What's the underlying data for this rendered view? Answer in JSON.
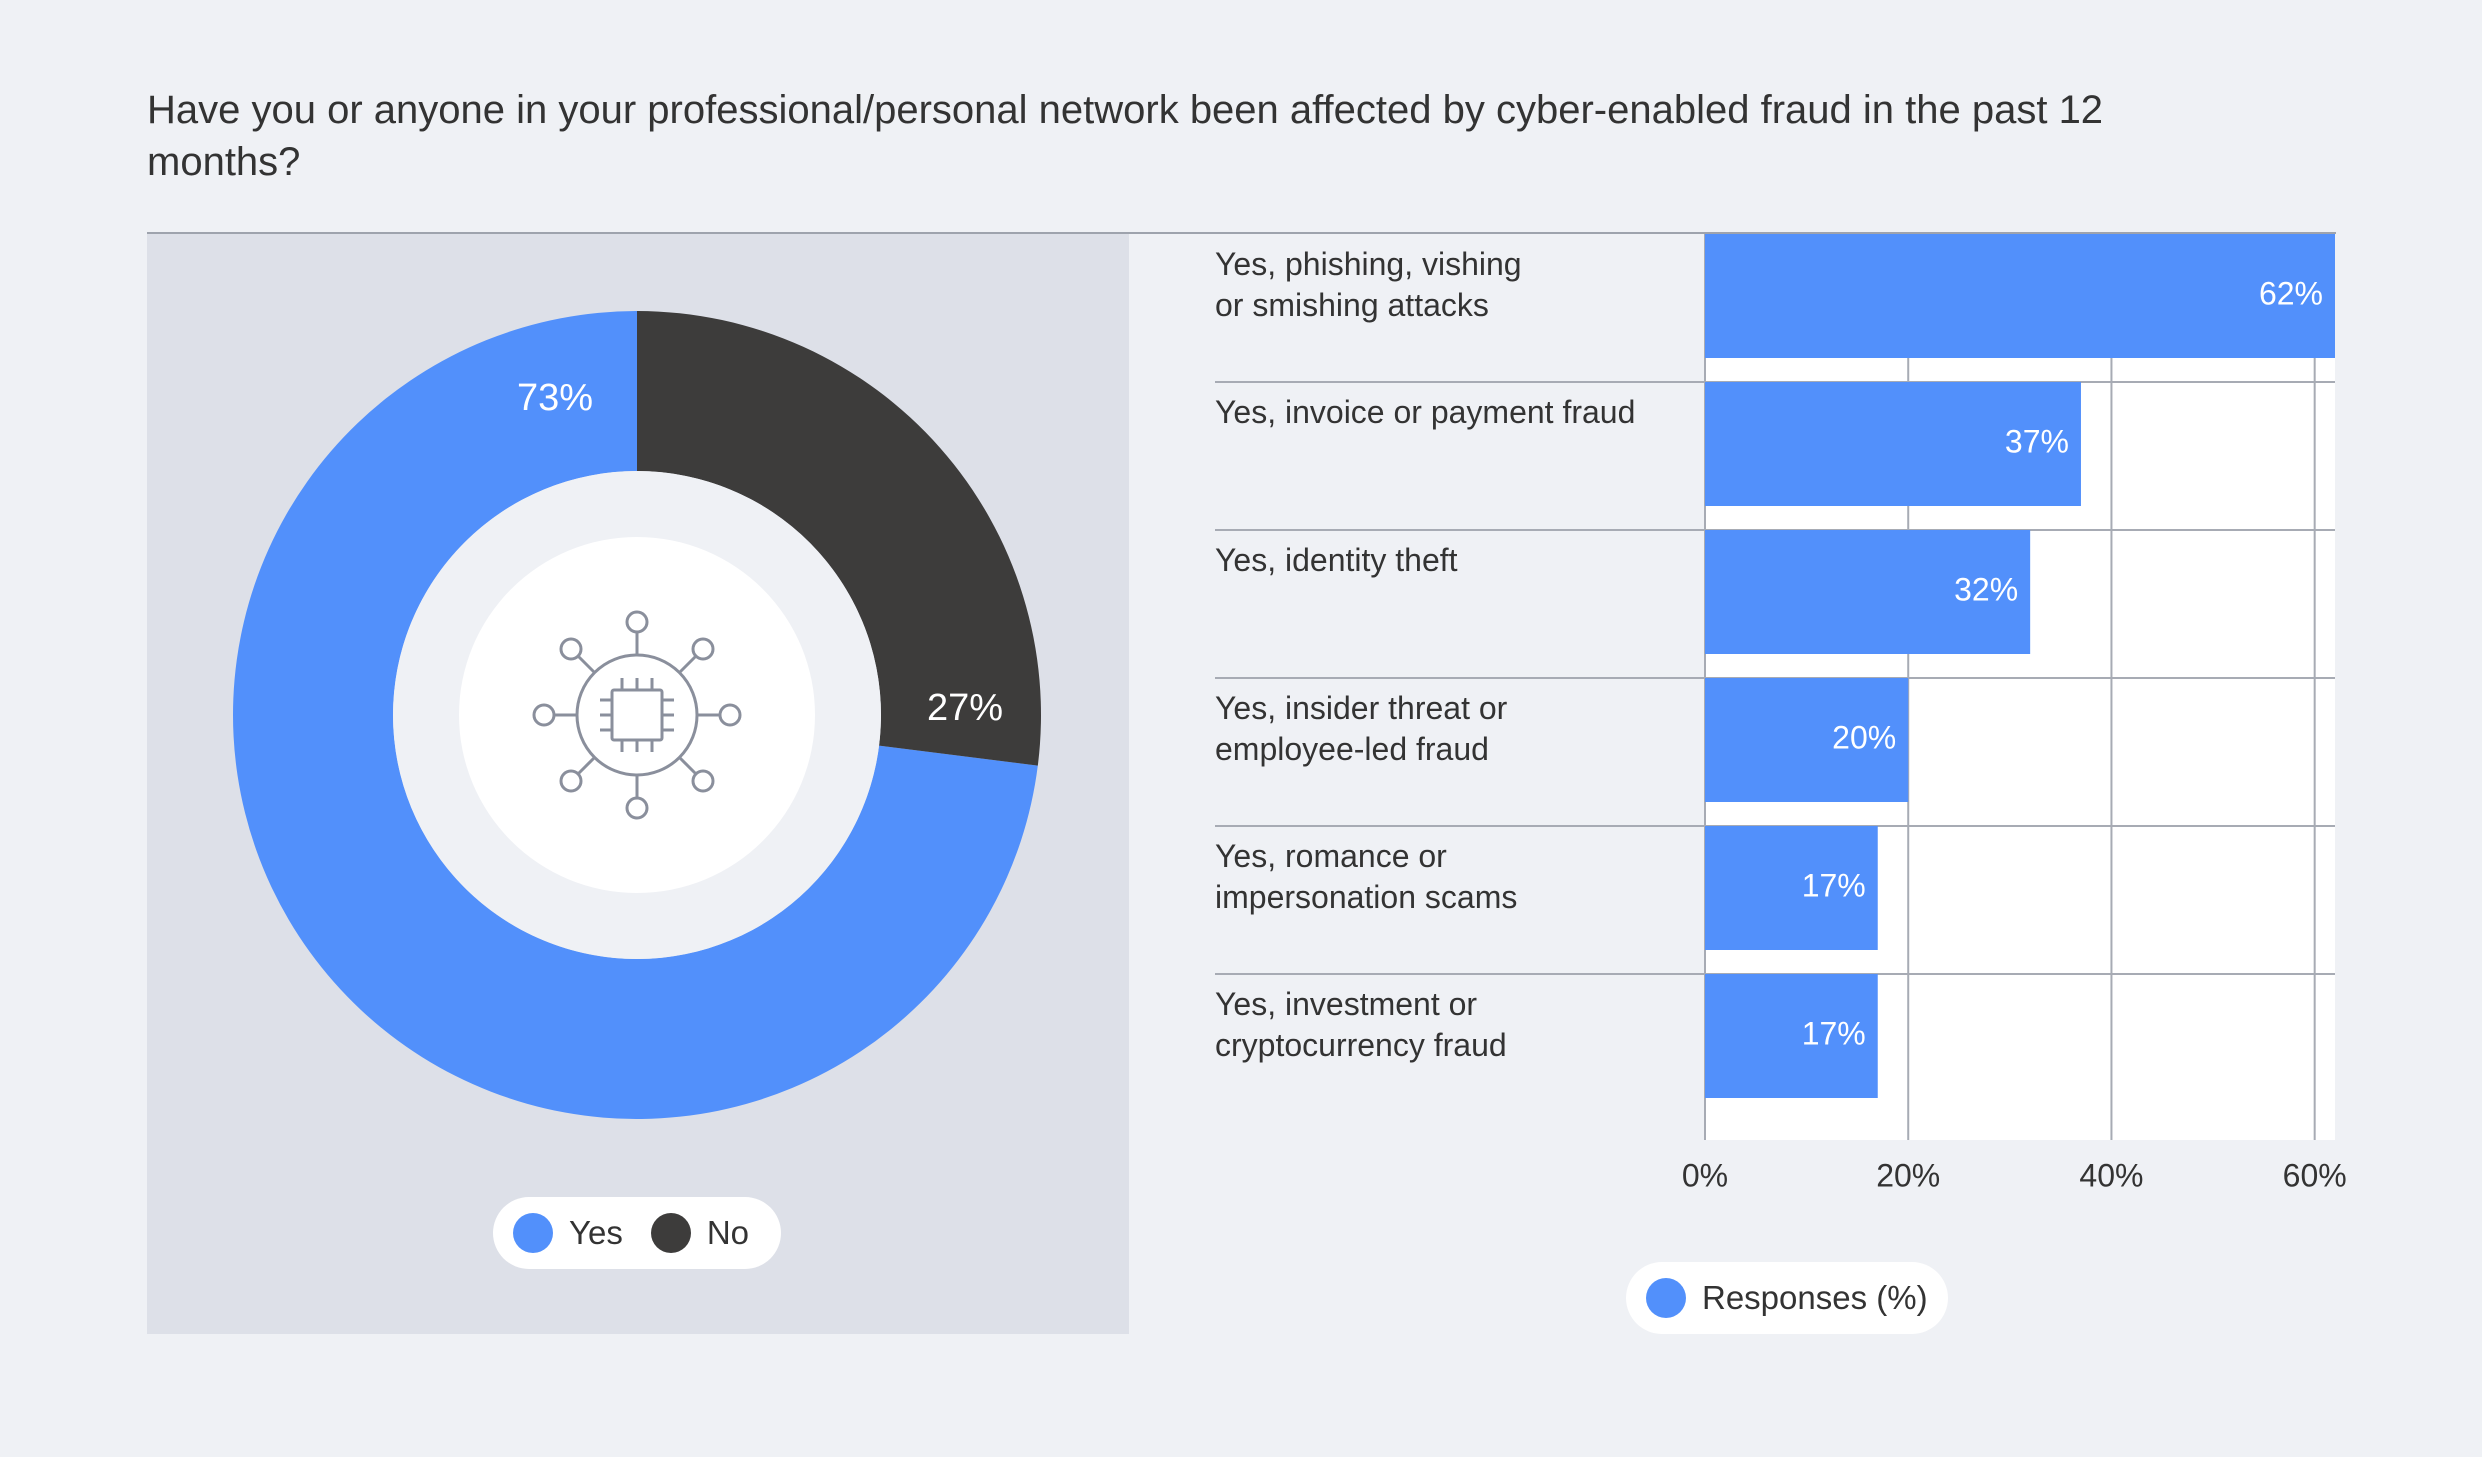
{
  "title": "Have you or anyone in your professional/personal network been affected by cyber-enabled fraud in the past 12 months?",
  "colors": {
    "yes": "#5290fb",
    "no": "#3d3c3b",
    "bar": "#5290fb",
    "panel": "#dde0e8",
    "background": "#eff1f5"
  },
  "icon": "circuit-chip-icon",
  "chart_data": [
    {
      "type": "pie",
      "variant": "donut",
      "slices": [
        {
          "label": "Yes",
          "value": 73,
          "display": "73%"
        },
        {
          "label": "No",
          "value": 27,
          "display": "27%"
        }
      ],
      "legend": [
        "Yes",
        "No"
      ],
      "legend_placement": "bottom"
    },
    {
      "type": "bar",
      "orientation": "horizontal",
      "categories": [
        "Yes, phishing, vishing\nor smishing attacks",
        "Yes, invoice or payment fraud",
        "Yes, identity theft",
        "Yes, insider threat or\nemployee-led fraud",
        "Yes, romance or\nimpersonation scams",
        "Yes, investment or\ncryptocurrency fraud"
      ],
      "values": [
        62,
        37,
        32,
        20,
        17,
        17
      ],
      "value_labels": [
        "62%",
        "37%",
        "32%",
        "20%",
        "17%",
        "17%"
      ],
      "xlim": [
        0,
        62
      ],
      "x_ticks": [
        0,
        20,
        40,
        60
      ],
      "x_tick_labels": [
        "0%",
        "20%",
        "40%",
        "60%"
      ],
      "grid": true,
      "legend": [
        "Responses (%)"
      ],
      "legend_placement": "bottom"
    }
  ]
}
